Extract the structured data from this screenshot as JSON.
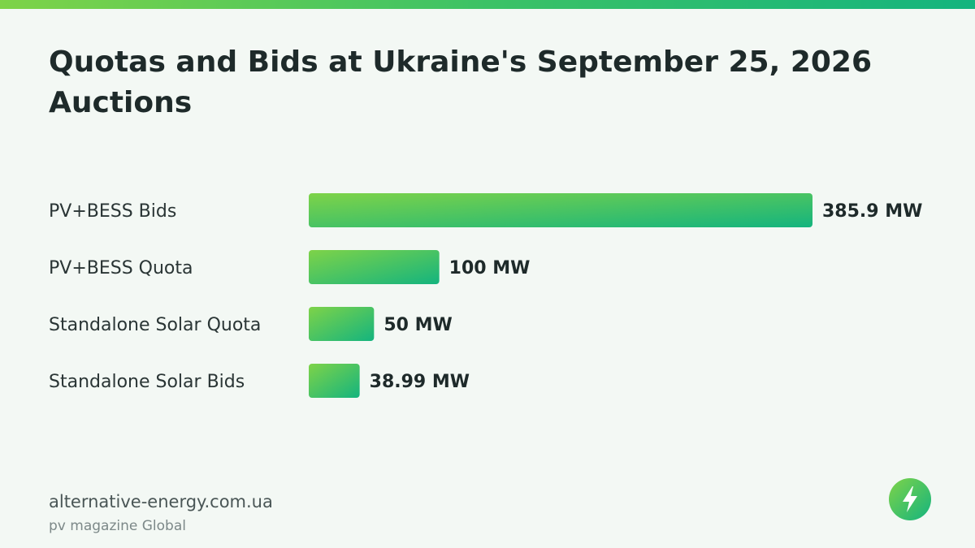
{
  "title": "Quotas and Bids at Ukraine's September 25, 2026 Auctions",
  "colors": {
    "accent_start": "#7ed348",
    "accent_end": "#14b47e",
    "background": "#f3f8f4",
    "text": "#1e2a2a"
  },
  "chart_data": {
    "type": "bar",
    "orientation": "horizontal",
    "title": "Quotas and Bids at Ukraine's September 25, 2026 Auctions",
    "unit": "MW",
    "categories": [
      "PV+BESS Bids",
      "PV+BESS Quota",
      "Standalone Solar Quota",
      "Standalone Solar Bids"
    ],
    "values": [
      385.9,
      100,
      50,
      38.99
    ],
    "value_labels": [
      "385.9 MW",
      "100 MW",
      "50 MW",
      "38.99 MW"
    ],
    "grid": false,
    "legend": "none"
  },
  "footer": {
    "site": "alternative-energy.com.ua",
    "publisher": "pv magazine Global",
    "logo_icon": "lightning-bolt-icon"
  }
}
